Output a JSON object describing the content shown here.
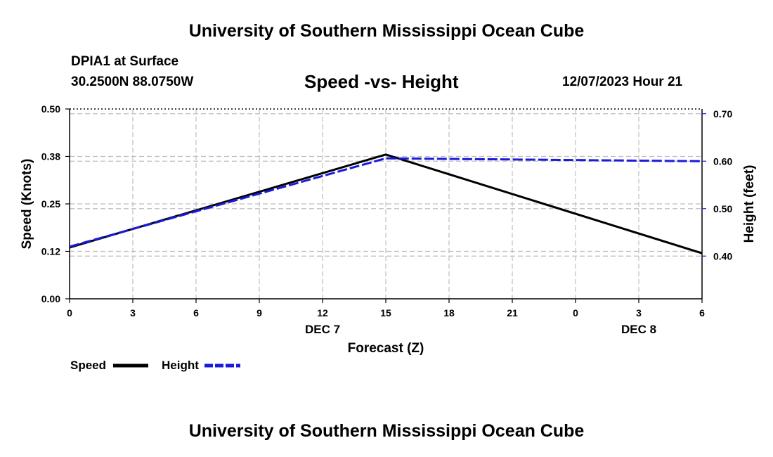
{
  "header": {
    "title": "University of Southern Mississippi Ocean Cube",
    "station": "DPIA1 at Surface",
    "coords": "30.2500N  88.0750W",
    "datetime": "12/07/2023 Hour 21",
    "footer_title": "University of Southern Mississippi Ocean Cube"
  },
  "chart_data": {
    "type": "line",
    "title": "Speed -vs- Height",
    "xlabel": "Forecast (Z)",
    "ylabel": "Speed (Knots)",
    "y2label": "Height (feet)",
    "x_ticks": [
      "0",
      "3",
      "6",
      "9",
      "12",
      "15",
      "18",
      "21",
      "0",
      "3",
      "6"
    ],
    "x_hours": [
      0,
      3,
      6,
      9,
      12,
      15,
      18,
      21,
      24,
      27,
      30
    ],
    "xlim": [
      0,
      30
    ],
    "date_labels": [
      {
        "label": "DEC 7",
        "hour": 12
      },
      {
        "label": "DEC 8",
        "hour": 27
      }
    ],
    "ylim": [
      0,
      0.5
    ],
    "y_ticks": [
      "0.00",
      "0.12",
      "0.25",
      "0.38",
      "0.50"
    ],
    "y_tick_values": [
      0,
      0.125,
      0.25,
      0.375,
      0.5
    ],
    "y2lim": [
      0.31,
      0.71
    ],
    "y2_ticks": [
      "0.40",
      "0.50",
      "0.60",
      "0.70"
    ],
    "y2_tick_values": [
      0.4,
      0.5,
      0.6,
      0.7
    ],
    "grid": true,
    "series": [
      {
        "name": "Speed",
        "axis": "left",
        "color": "#000000",
        "dash": "solid",
        "x": [
          0,
          15,
          30
        ],
        "values": [
          0.135,
          0.38,
          0.12
        ]
      },
      {
        "name": "Height",
        "axis": "right",
        "color": "#1a1adf",
        "dash": "dashed",
        "x": [
          0,
          15,
          30
        ],
        "values": [
          0.42,
          0.606,
          0.6
        ]
      }
    ],
    "legend": [
      {
        "name": "Speed",
        "color": "#000000",
        "dash": "solid"
      },
      {
        "name": "Height",
        "color": "#1a1adf",
        "dash": "dashed"
      }
    ]
  }
}
